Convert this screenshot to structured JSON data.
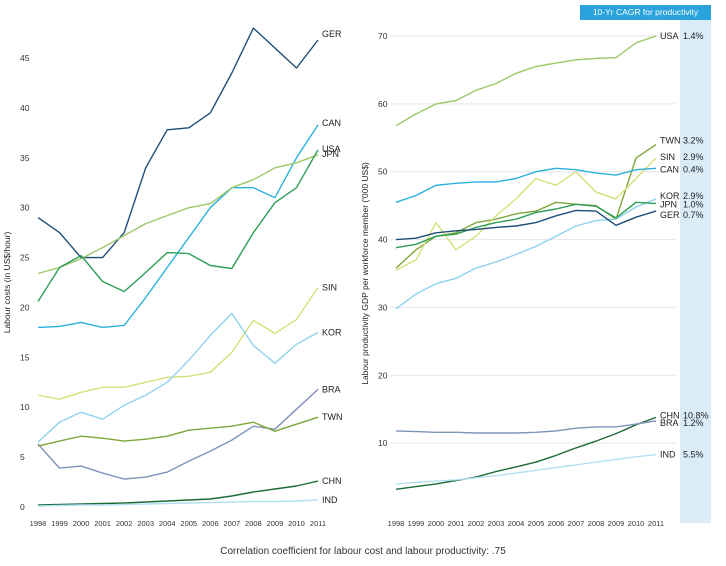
{
  "caption": "Correlation coefficient for labour cost and labour productivity: .75",
  "cagr_header": "10-Yr CAGR for productivity",
  "colors": {
    "GER": "#1f4e79",
    "CAN": "#2bb0dd",
    "USA": "#9dc86a",
    "JPN": "#2e9e56",
    "SIN": "#d4e07a",
    "KOR": "#8fd3ec",
    "BRA": "#7f93b8",
    "TWN": "#7fa63a",
    "CHN": "#1d6b3a",
    "IND": "#b5e0f2",
    "band": "#d9ecf8"
  },
  "chart_data": [
    {
      "type": "line",
      "title": "",
      "xlabel": "",
      "ylabel": "Labour costs (in US$/hour)",
      "x": [
        "1998",
        "1999",
        "2000",
        "2001",
        "2002",
        "2003",
        "2004",
        "2005",
        "2006",
        "2007",
        "2008",
        "2009",
        "2010",
        "2011"
      ],
      "yticks": [
        "0",
        "5",
        "10",
        "15",
        "20",
        "25",
        "30",
        "35",
        "40",
        "45"
      ],
      "ylim": [
        0,
        48
      ],
      "grid": false,
      "series": [
        {
          "name": "GER",
          "values": [
            29,
            27.5,
            25,
            25,
            27.5,
            34,
            37.8,
            38,
            39.5,
            43.5,
            48,
            46,
            44,
            46.8
          ]
        },
        {
          "name": "CAN",
          "values": [
            18,
            18.1,
            18.5,
            18,
            18.2,
            21,
            24,
            27,
            30,
            32,
            32,
            31,
            35,
            38.3
          ]
        },
        {
          "name": "USA",
          "values": [
            23.4,
            24,
            24.9,
            26,
            27.2,
            28.4,
            29.2,
            30,
            30.4,
            32,
            32.8,
            34,
            34.5,
            35.3
          ]
        },
        {
          "name": "JPN",
          "values": [
            20.6,
            24,
            25.2,
            22.6,
            21.6,
            23.5,
            25.5,
            25.4,
            24.2,
            23.9,
            27.5,
            30.5,
            32,
            35.8
          ]
        },
        {
          "name": "SIN",
          "values": [
            11.2,
            10.8,
            11.5,
            12,
            12,
            12.5,
            13,
            13.1,
            13.5,
            15.5,
            18.7,
            17.4,
            18.8,
            22
          ]
        },
        {
          "name": "KOR",
          "values": [
            6.5,
            8.5,
            9.5,
            8.8,
            10.2,
            11.2,
            12.5,
            14.7,
            17.2,
            19.4,
            16.2,
            14.4,
            16.3,
            17.5
          ]
        },
        {
          "name": "BRA",
          "values": [
            6.3,
            3.9,
            4.1,
            3.4,
            2.8,
            3,
            3.5,
            4.6,
            5.6,
            6.7,
            8.1,
            7.8,
            9.8,
            11.8
          ]
        },
        {
          "name": "TWN",
          "values": [
            6.1,
            6.6,
            7.1,
            6.9,
            6.6,
            6.8,
            7.1,
            7.7,
            7.9,
            8.1,
            8.5,
            7.6,
            8.3,
            9
          ]
        },
        {
          "name": "CHN",
          "values": [
            0.2,
            0.25,
            0.3,
            0.35,
            0.4,
            0.5,
            0.6,
            0.7,
            0.8,
            1.1,
            1.5,
            1.8,
            2.1,
            2.6
          ]
        },
        {
          "name": "IND",
          "values": [
            0.1,
            0.15,
            0.2,
            0.2,
            0.25,
            0.3,
            0.35,
            0.4,
            0.45,
            0.5,
            0.55,
            0.55,
            0.6,
            0.7
          ]
        }
      ]
    },
    {
      "type": "line",
      "title": "",
      "xlabel": "",
      "ylabel": "Labour productivity GDP per workforce member ('000 US$)",
      "x": [
        "1998",
        "1999",
        "2000",
        "2001",
        "2002",
        "2003",
        "2004",
        "2005",
        "2006",
        "2007",
        "2008",
        "2009",
        "2010",
        "2011"
      ],
      "yticks": [
        "10",
        "20",
        "30",
        "40",
        "50",
        "60",
        "70"
      ],
      "ylim": [
        0,
        70.5
      ],
      "grid": true,
      "series": [
        {
          "name": "USA",
          "cagr": "1.4%",
          "values": [
            56.8,
            58.5,
            60,
            60.5,
            62,
            63,
            64.5,
            65.5,
            66,
            66.5,
            66.7,
            66.8,
            69,
            70
          ]
        },
        {
          "name": "TWN",
          "cagr": "3.2%",
          "values": [
            35.8,
            38.5,
            40.5,
            41,
            42.5,
            43,
            43.8,
            44.2,
            45.5,
            45.2,
            45,
            43,
            52,
            54
          ]
        },
        {
          "name": "SIN",
          "cagr": "2.9%",
          "values": [
            35.5,
            37,
            42.5,
            38.5,
            40.5,
            43.5,
            46,
            49,
            48,
            50,
            47,
            46,
            49,
            52
          ]
        },
        {
          "name": "CAN",
          "cagr": "0.4%",
          "values": [
            45.5,
            46.5,
            48,
            48.3,
            48.5,
            48.5,
            49,
            50,
            50.5,
            50.3,
            49.8,
            49.5,
            50.3,
            50.5
          ]
        },
        {
          "name": "KOR",
          "cagr": "2.9%",
          "values": [
            29.8,
            32,
            33.5,
            34.3,
            35.8,
            36.7,
            37.8,
            39,
            40.5,
            42,
            42.8,
            43,
            44.8,
            46
          ]
        },
        {
          "name": "JPN",
          "cagr": "1.0%",
          "values": [
            38.8,
            39.3,
            40.5,
            40.8,
            41.8,
            42.5,
            43,
            44,
            44.5,
            45.2,
            44.9,
            43.2,
            45.5,
            45.3
          ]
        },
        {
          "name": "GER",
          "cagr": "0.7%",
          "values": [
            40,
            40.2,
            41,
            41.3,
            41.5,
            41.8,
            42,
            42.5,
            43.5,
            44.3,
            44.2,
            42.1,
            43.3,
            44.2
          ]
        },
        {
          "name": "CHN",
          "cagr": "10.8%",
          "values": [
            3.2,
            3.6,
            4,
            4.5,
            5,
            5.8,
            6.5,
            7.2,
            8.2,
            9.3,
            10.3,
            11.4,
            12.7,
            13.8
          ]
        },
        {
          "name": "BRA",
          "cagr": "1.2%",
          "values": [
            11.8,
            11.7,
            11.6,
            11.6,
            11.5,
            11.5,
            11.5,
            11.6,
            11.8,
            12.2,
            12.4,
            12.4,
            12.8,
            13.3
          ]
        },
        {
          "name": "IND",
          "cagr": "5.5%",
          "values": [
            4,
            4.2,
            4.4,
            4.6,
            4.9,
            5.2,
            5.6,
            6,
            6.4,
            6.8,
            7.2,
            7.6,
            8,
            8.3
          ]
        }
      ]
    }
  ]
}
